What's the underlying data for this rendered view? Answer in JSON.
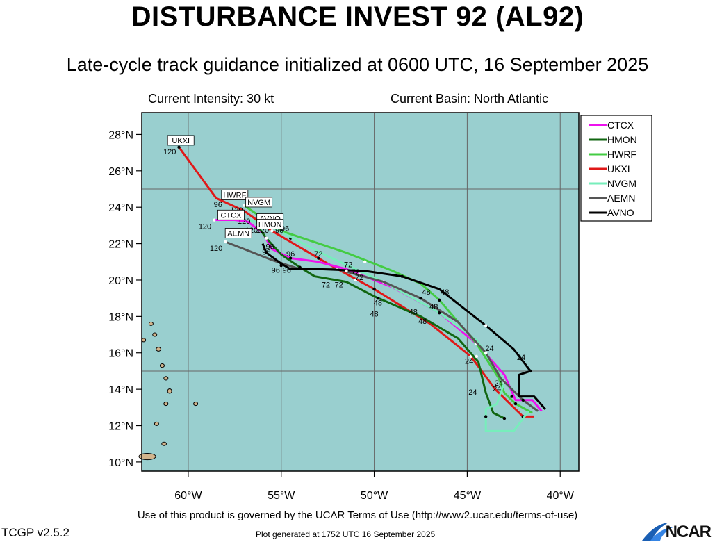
{
  "title": "DISTURBANCE INVEST 92 (AL92)",
  "subtitle": "Late-cycle track guidance initialized at 0600 UTC, 16 September 2025",
  "current_intensity": "Current Intensity: 30 kt",
  "current_basin": "Current Basin: North Atlantic",
  "terms": "Use of this product is governed by the UCAR Terms of Use (http://www2.ucar.edu/terms-of-use)",
  "version": "TCGP v2.5.2",
  "generated": "Plot generated at 1752 UTC   16 September 2025",
  "logo": "NCAR",
  "colors": {
    "ocean": "#99cfcf",
    "land": "#d2b48c",
    "grid": "#666666",
    "CTCX": "#ee11ee",
    "HMON": "#116611",
    "HWRF": "#44cc44",
    "UKXI": "#e01818",
    "NVGM": "#77eebb",
    "AEMN": "#555555",
    "AVNO": "#000000"
  },
  "map": {
    "lon_range": [
      -62.5,
      -39
    ],
    "lat_range": [
      9.5,
      29.2
    ],
    "x_ticks": [
      {
        "v": -60,
        "t": "60°W"
      },
      {
        "v": -55,
        "t": "55°W"
      },
      {
        "v": -50,
        "t": "50°W"
      },
      {
        "v": -45,
        "t": "45°W"
      },
      {
        "v": -40,
        "t": "40°W"
      }
    ],
    "y_ticks": [
      {
        "v": 28,
        "t": "28°N"
      },
      {
        "v": 26,
        "t": "26°N"
      },
      {
        "v": 24,
        "t": "24°N"
      },
      {
        "v": 22,
        "t": "22°N"
      },
      {
        "v": 20,
        "t": "20°N"
      },
      {
        "v": 18,
        "t": "18°N"
      },
      {
        "v": 16,
        "t": "16°N"
      },
      {
        "v": 14,
        "t": "14°N"
      },
      {
        "v": 12,
        "t": "12°N"
      },
      {
        "v": 10,
        "t": "10°N"
      }
    ],
    "grid_lon": [
      -60,
      -55,
      -50,
      -45,
      -40
    ],
    "grid_lat": [
      25,
      15
    ]
  },
  "legend": [
    "CTCX",
    "HMON",
    "HWRF",
    "UKXI",
    "NVGM",
    "AEMN",
    "AVNO"
  ],
  "tracks": [
    {
      "model": "UKXI",
      "end_label": "UKXI",
      "points": [
        [
          -41.4,
          12.5
        ],
        [
          -42.0,
          12.5
        ],
        [
          -43.5,
          14.0
        ],
        [
          -44.8,
          15.8
        ],
        [
          -47.0,
          17.6
        ],
        [
          -50.0,
          19.5
        ],
        [
          -52.5,
          20.9
        ],
        [
          -55.5,
          22.7
        ],
        [
          -57.0,
          23.8
        ],
        [
          -58.5,
          24.5
        ],
        [
          -60.5,
          27.3
        ]
      ],
      "dots": [
        [
          -42.0,
          12.5
        ],
        [
          -44.8,
          15.8
        ],
        [
          -50.0,
          19.5
        ],
        [
          -55.5,
          22.7
        ],
        [
          -60.5,
          27.3
        ]
      ],
      "hour_labels": [
        {
          "t": "24",
          "lon": -44.9,
          "lat": 15.4
        },
        {
          "t": "48",
          "lon": -47.9,
          "lat": 18.1
        },
        {
          "t": "120",
          "lon": -61.0,
          "lat": 26.9
        }
      ]
    },
    {
      "model": "CTCX",
      "end_label": "CTCX",
      "points": [
        [
          -41.0,
          12.8
        ],
        [
          -41.5,
          13.4
        ],
        [
          -42.4,
          13.4
        ],
        [
          -43.0,
          14.8
        ],
        [
          -44.5,
          16.5
        ],
        [
          -46.5,
          18.2
        ],
        [
          -49.0,
          19.6
        ],
        [
          -51.5,
          20.6
        ],
        [
          -53.0,
          21.0
        ],
        [
          -54.5,
          21.2
        ],
        [
          -55.5,
          21.7
        ],
        [
          -56.0,
          22.6
        ],
        [
          -56.8,
          23.2
        ],
        [
          -57.5,
          23.3
        ],
        [
          -58.6,
          23.3
        ]
      ],
      "dots": [
        [
          -42.6,
          13.6
        ],
        [
          -44.5,
          16.5
        ],
        [
          -46.5,
          18.2
        ],
        [
          -50.8,
          20.3
        ],
        [
          -54.5,
          21.2
        ],
        [
          -58.6,
          23.3
        ]
      ],
      "hour_labels": [
        {
          "t": "120",
          "lon": -59.1,
          "lat": 22.8
        }
      ]
    },
    {
      "model": "HMON",
      "end_label": "HMON",
      "points": [
        [
          -43.0,
          12.4
        ],
        [
          -43.6,
          12.7
        ],
        [
          -44.0,
          13.8
        ],
        [
          -44.4,
          15.5
        ],
        [
          -45.5,
          16.8
        ],
        [
          -47.5,
          18.0
        ],
        [
          -50.0,
          19.1
        ],
        [
          -51.5,
          19.9
        ],
        [
          -53.2,
          20.2
        ],
        [
          -54.0,
          20.7
        ],
        [
          -55.0,
          21.4
        ],
        [
          -55.8,
          22.3
        ],
        [
          -56.3,
          23.0
        ]
      ],
      "dots": [
        [
          -43.0,
          12.4
        ],
        [
          -44.5,
          15.8
        ],
        [
          -49.8,
          19.0
        ],
        [
          -51.0,
          20.0
        ],
        [
          -54.0,
          20.7
        ],
        [
          -55.8,
          22.3
        ]
      ],
      "hour_labels": [
        {
          "t": "24",
          "lon": -44.7,
          "lat": 13.7
        },
        {
          "t": "48",
          "lon": -49.8,
          "lat": 18.6
        },
        {
          "t": "72",
          "lon": -52.6,
          "lat": 19.6
        }
      ]
    },
    {
      "model": "HWRF",
      "end_label": "HWRF",
      "points": [
        [
          -41.5,
          12.7
        ],
        [
          -42.4,
          13.2
        ],
        [
          -43.0,
          13.8
        ],
        [
          -43.3,
          14.6
        ],
        [
          -44.5,
          16.5
        ],
        [
          -46.5,
          18.9
        ],
        [
          -47.5,
          19.8
        ],
        [
          -49.0,
          20.5
        ],
        [
          -51.5,
          21.5
        ],
        [
          -55.0,
          22.7
        ],
        [
          -57.0,
          24.1
        ]
      ],
      "dots": [
        [
          -42.4,
          13.2
        ],
        [
          -44.5,
          16.5
        ],
        [
          -46.5,
          18.9
        ],
        [
          -50.5,
          21.0
        ],
        [
          -54.5,
          22.3
        ],
        [
          -57.0,
          24.1
        ]
      ],
      "hour_labels": [
        {
          "t": "24",
          "lon": -43.3,
          "lat": 14.2
        },
        {
          "t": "48",
          "lon": -46.8,
          "lat": 18.4
        },
        {
          "t": "72",
          "lon": -53.0,
          "lat": 21.3
        },
        {
          "t": "96",
          "lon": -54.8,
          "lat": 22.7
        },
        {
          "t": "120",
          "lon": -57.4,
          "lat": 23.7
        }
      ]
    },
    {
      "model": "NVGM",
      "end_label": "NVGM",
      "points": [
        [
          -41.7,
          12.8
        ],
        [
          -42.5,
          11.7
        ],
        [
          -44.0,
          11.7
        ],
        [
          -44.0,
          12.9
        ],
        [
          -43.4,
          13.2
        ],
        [
          -43.0,
          14.4
        ],
        [
          -44.5,
          16.7
        ],
        [
          -46.5,
          18.2
        ],
        [
          -49.5,
          19.9
        ],
        [
          -52.5,
          21.3
        ],
        [
          -55.5,
          22.9
        ],
        [
          -56.7,
          23.3
        ]
      ],
      "dots": [
        [
          -44.0,
          12.5
        ],
        [
          -43.0,
          14.4
        ],
        [
          -46.5,
          18.2
        ],
        [
          -49.5,
          19.9
        ],
        [
          -53.0,
          21.2
        ],
        [
          -55.5,
          22.9
        ]
      ],
      "hour_labels": [
        {
          "t": "120",
          "lon": -57.0,
          "lat": 23.1
        }
      ]
    },
    {
      "model": "AEMN",
      "end_label": "AEMN",
      "points": [
        [
          -41.2,
          12.8
        ],
        [
          -42.0,
          13.4
        ],
        [
          -43.2,
          14.6
        ],
        [
          -44.0,
          16.0
        ],
        [
          -45.5,
          17.7
        ],
        [
          -47.5,
          19.0
        ],
        [
          -49.5,
          19.9
        ],
        [
          -52.0,
          20.6
        ],
        [
          -54.0,
          20.6
        ],
        [
          -55.5,
          21.1
        ],
        [
          -57.0,
          21.7
        ],
        [
          -58.0,
          22.1
        ]
      ],
      "dots": [
        [
          -42.0,
          13.4
        ],
        [
          -44.0,
          16.0
        ],
        [
          -47.5,
          19.0
        ],
        [
          -52.0,
          20.6
        ],
        [
          -55.0,
          20.8
        ],
        [
          -58.0,
          22.1
        ]
      ],
      "hour_labels": [
        {
          "t": "48",
          "lon": -47.2,
          "lat": 19.2
        },
        {
          "t": "120",
          "lon": -58.5,
          "lat": 21.6
        }
      ]
    },
    {
      "model": "AVNO",
      "end_label": "AVNO",
      "points": [
        [
          -40.8,
          12.9
        ],
        [
          -41.4,
          13.6
        ],
        [
          -42.2,
          13.6
        ],
        [
          -42.2,
          14.8
        ],
        [
          -41.6,
          15.0
        ],
        [
          -42.5,
          16.2
        ],
        [
          -44.0,
          17.5
        ],
        [
          -46.5,
          19.5
        ],
        [
          -48.5,
          20.2
        ],
        [
          -50.5,
          20.5
        ],
        [
          -53.0,
          20.6
        ],
        [
          -54.5,
          20.6
        ],
        [
          -55.0,
          20.9
        ],
        [
          -55.8,
          21.5
        ],
        [
          -56.0,
          22.0
        ]
      ],
      "dots": [
        [
          -41.6,
          15.0
        ],
        [
          -44.0,
          17.5
        ],
        [
          -48.5,
          20.2
        ],
        [
          -51.5,
          20.5
        ],
        [
          -55.0,
          20.9
        ],
        [
          -55.5,
          23.0
        ]
      ],
      "hour_labels": [
        {
          "t": "24",
          "lon": -42.1,
          "lat": 15.6
        },
        {
          "t": "48",
          "lon": -46.2,
          "lat": 19.2
        },
        {
          "t": "72",
          "lon": -51.4,
          "lat": 20.7
        },
        {
          "t": "96",
          "lon": -55.8,
          "lat": 21.4
        }
      ]
    }
  ],
  "extra_hour_labels": [
    {
      "t": "24",
      "lon": -43.8,
      "lat": 16.1
    },
    {
      "t": "24",
      "lon": -43.4,
      "lat": 13.9
    },
    {
      "t": "48",
      "lon": -47.4,
      "lat": 17.6
    },
    {
      "t": "48",
      "lon": -50.0,
      "lat": 18.0
    },
    {
      "t": "72",
      "lon": -51.9,
      "lat": 19.6
    },
    {
      "t": "72",
      "lon": -51.0,
      "lat": 20.3
    },
    {
      "t": "72",
      "lon": -50.8,
      "lat": 20.0
    },
    {
      "t": "96",
      "lon": -55.6,
      "lat": 21.7
    },
    {
      "t": "96",
      "lon": -54.5,
      "lat": 21.3
    },
    {
      "t": "96",
      "lon": -55.3,
      "lat": 20.4
    },
    {
      "t": "96",
      "lon": -54.7,
      "lat": 20.4
    },
    {
      "t": "96",
      "lon": -58.4,
      "lat": 24.0
    },
    {
      "t": "96",
      "lon": -55.1,
      "lat": 22.6
    },
    {
      "t": "120",
      "lon": -56.6,
      "lat": 22.6
    },
    {
      "t": "120",
      "lon": -56.0,
      "lat": 22.6
    }
  ],
  "end_boxes": [
    {
      "t": "UKXI",
      "lon": -60.4,
      "lat": 27.6
    },
    {
      "t": "HWRF",
      "lon": -57.5,
      "lat": 24.6
    },
    {
      "t": "NVGM",
      "lon": -56.2,
      "lat": 24.2
    },
    {
      "t": "CTCX",
      "lon": -57.7,
      "lat": 23.5
    },
    {
      "t": "AVNO",
      "lon": -55.6,
      "lat": 23.3
    },
    {
      "t": "HMON",
      "lon": -55.6,
      "lat": 23.0
    },
    {
      "t": "AEMN",
      "lon": -57.3,
      "lat": 22.5
    }
  ]
}
